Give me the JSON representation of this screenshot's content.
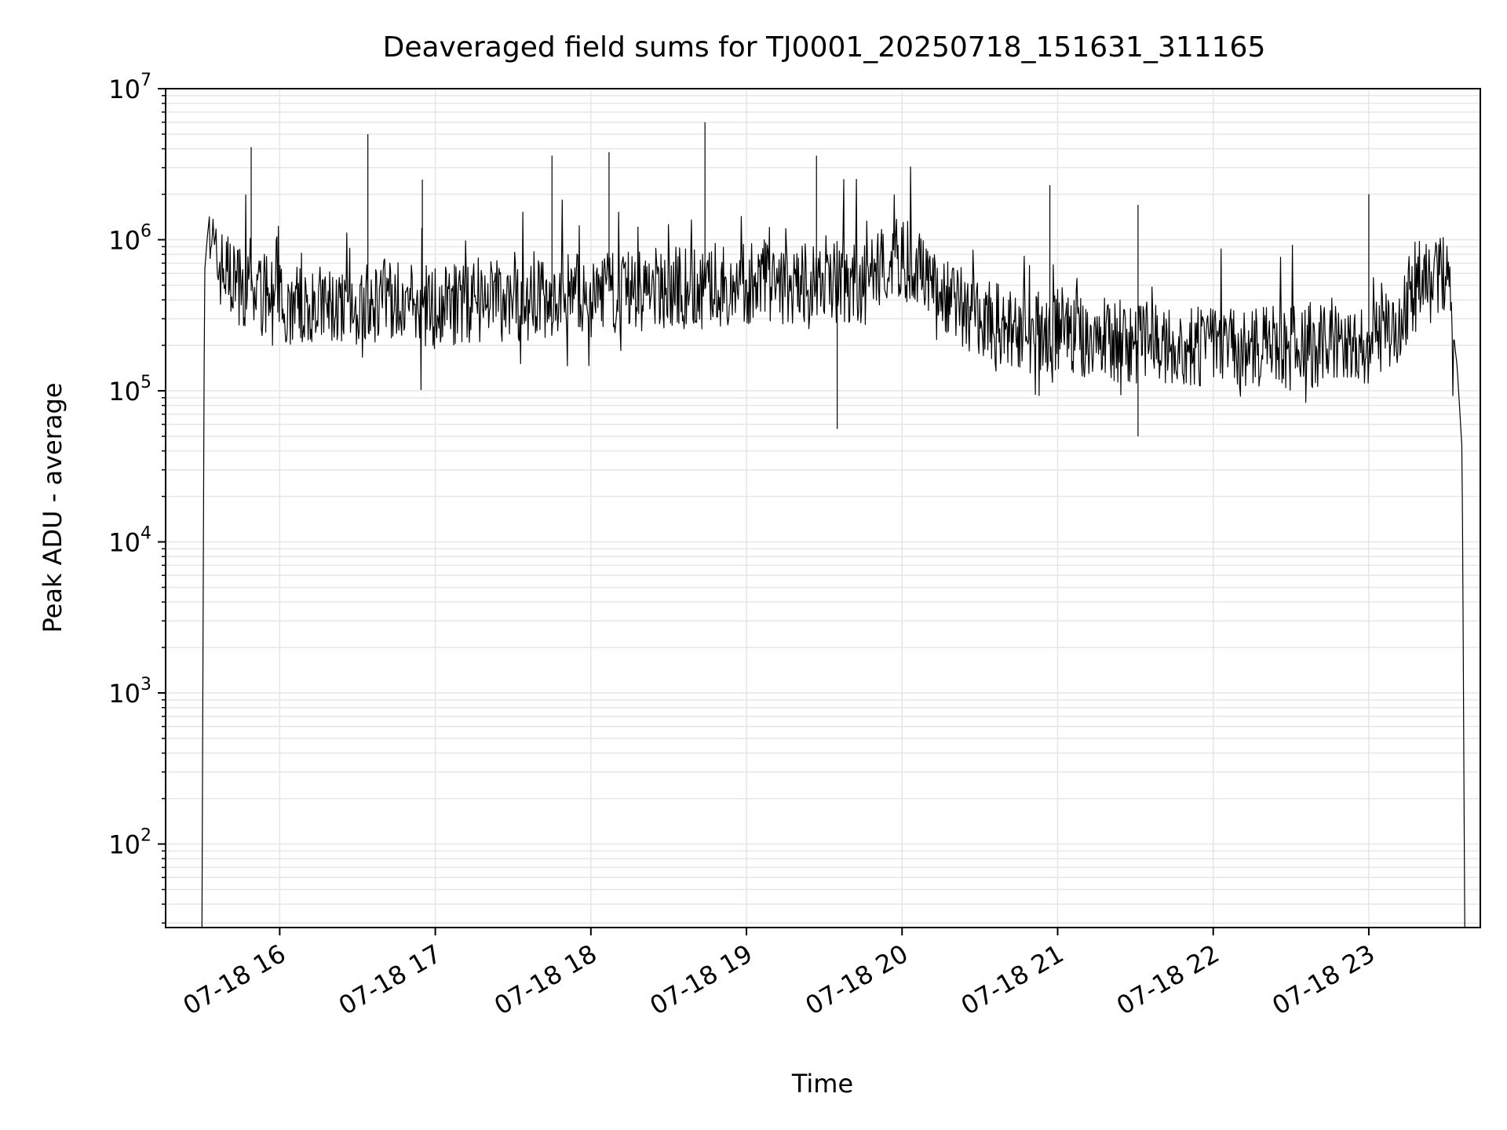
{
  "chart_data": {
    "type": "line",
    "title": "Deaveraged field sums for TJ0001_20250718_151631_311165",
    "xlabel": "Time",
    "ylabel": "Peak ADU - average",
    "yscale": "log",
    "xlim": [
      "2025-07-18 15:16",
      "2025-07-18 23:43"
    ],
    "ylim": [
      28,
      10000000
    ],
    "grid": true,
    "line_color": "#000000",
    "x_ticks": [
      {
        "time": "2025-07-18 16:00",
        "label": "07-18 16"
      },
      {
        "time": "2025-07-18 17:00",
        "label": "07-18 17"
      },
      {
        "time": "2025-07-18 18:00",
        "label": "07-18 18"
      },
      {
        "time": "2025-07-18 19:00",
        "label": "07-18 19"
      },
      {
        "time": "2025-07-18 20:00",
        "label": "07-18 20"
      },
      {
        "time": "2025-07-18 21:00",
        "label": "07-18 21"
      },
      {
        "time": "2025-07-18 22:00",
        "label": "07-18 22"
      },
      {
        "time": "2025-07-18 23:00",
        "label": "07-18 23"
      }
    ],
    "y_ticks": [
      {
        "value": 100,
        "base": "10",
        "exp": "2"
      },
      {
        "value": 1000,
        "base": "10",
        "exp": "3"
      },
      {
        "value": 10000,
        "base": "10",
        "exp": "4"
      },
      {
        "value": 100000,
        "base": "10",
        "exp": "5"
      },
      {
        "value": 1000000,
        "base": "10",
        "exp": "6"
      },
      {
        "value": 10000000,
        "base": "10",
        "exp": "7"
      }
    ],
    "series": [
      {
        "x": [
          "2025-07-18 15:30",
          "2025-07-18 15:31",
          "2025-07-18 15:32",
          "2025-07-18 15:33",
          "2025-07-18 15:35",
          "2025-07-18 15:40",
          "2025-07-18 15:45",
          "2025-07-18 15:50",
          "2025-07-18 16:00",
          "2025-07-18 16:10",
          "2025-07-18 16:20",
          "2025-07-18 16:30",
          "2025-07-18 16:40",
          "2025-07-18 16:50",
          "2025-07-18 17:00",
          "2025-07-18 17:15",
          "2025-07-18 17:30",
          "2025-07-18 17:45",
          "2025-07-18 18:00",
          "2025-07-18 18:15",
          "2025-07-18 18:30",
          "2025-07-18 18:45",
          "2025-07-18 19:00",
          "2025-07-18 19:15",
          "2025-07-18 19:30",
          "2025-07-18 19:45",
          "2025-07-18 20:00",
          "2025-07-18 20:15",
          "2025-07-18 20:30",
          "2025-07-18 20:45",
          "2025-07-18 21:00",
          "2025-07-18 21:15",
          "2025-07-18 21:30",
          "2025-07-18 21:45",
          "2025-07-18 22:00",
          "2025-07-18 22:15",
          "2025-07-18 22:30",
          "2025-07-18 22:45",
          "2025-07-18 23:00",
          "2025-07-18 23:10",
          "2025-07-18 23:15",
          "2025-07-18 23:20",
          "2025-07-18 23:25",
          "2025-07-18 23:30",
          "2025-07-18 23:34",
          "2025-07-18 23:36",
          "2025-07-18 23:37"
        ],
        "y": [
          28,
          600000,
          1000000,
          1500000,
          700000,
          600000,
          500000,
          450000,
          400000,
          380000,
          350000,
          360000,
          400000,
          380000,
          360000,
          380000,
          400000,
          420000,
          450000,
          460000,
          480000,
          470000,
          500000,
          520000,
          550000,
          500000,
          800000,
          450000,
          300000,
          250000,
          230000,
          220000,
          210000,
          200000,
          200000,
          190000,
          190000,
          200000,
          210000,
          250000,
          350000,
          500000,
          700000,
          550000,
          150000,
          40000,
          28
        ]
      }
    ],
    "spikes": [
      {
        "x": "2025-07-18 15:49",
        "y": 4100000
      },
      {
        "x": "2025-07-18 16:34",
        "y": 5000000
      },
      {
        "x": "2025-07-18 16:55",
        "y": 2500000
      },
      {
        "x": "2025-07-18 17:45",
        "y": 3600000
      },
      {
        "x": "2025-07-18 18:07",
        "y": 3800000
      },
      {
        "x": "2025-07-18 18:44",
        "y": 6000000
      },
      {
        "x": "2025-07-18 19:27",
        "y": 3600000
      },
      {
        "x": "2025-07-18 19:35",
        "y": 56000
      },
      {
        "x": "2025-07-18 20:57",
        "y": 2300000
      },
      {
        "x": "2025-07-18 21:31",
        "y": 50000
      },
      {
        "x": "2025-07-18 21:31",
        "y": 1700000
      },
      {
        "x": "2025-07-18 23:00",
        "y": 2000000
      }
    ]
  }
}
